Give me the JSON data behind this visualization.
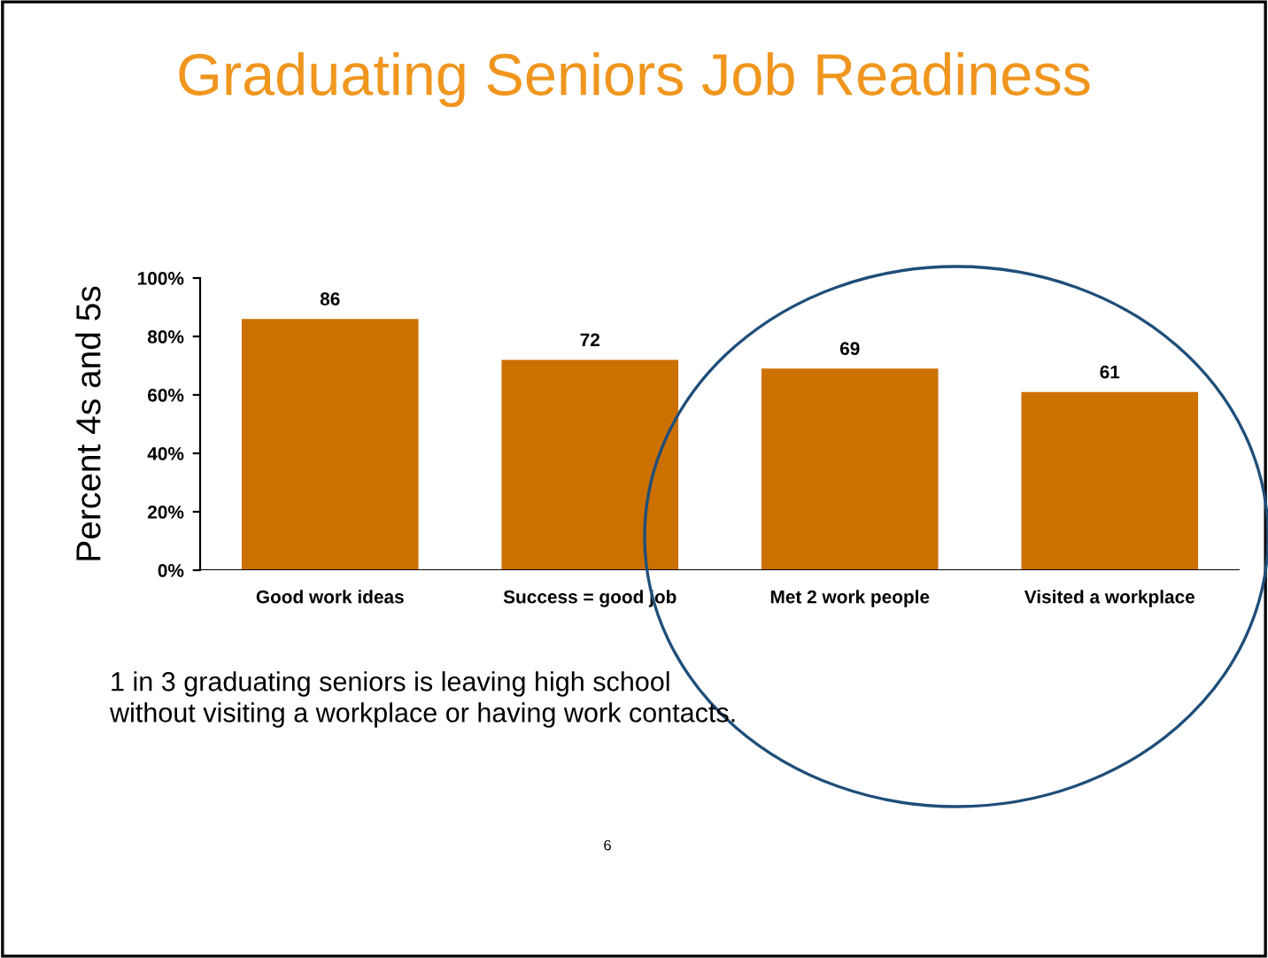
{
  "chart_data": {
    "type": "bar",
    "title": "Graduating Seniors Job Readiness",
    "ylabel": "Percent 4s and 5s",
    "categories": [
      "Good work ideas",
      "Success = good job",
      "Met 2 work people",
      "Visited a workplace"
    ],
    "values": [
      86,
      72,
      69,
      61
    ],
    "color": "#cc7000",
    "data_labels": true,
    "ylim": [
      0,
      100
    ],
    "yticks": [
      {
        "value": 0,
        "label": "0%"
      },
      {
        "value": 20,
        "label": "20%"
      },
      {
        "value": 40,
        "label": "40%"
      },
      {
        "value": 60,
        "label": "60%"
      },
      {
        "value": 80,
        "label": "80%"
      },
      {
        "value": 100,
        "label": "100%"
      }
    ],
    "grid": false,
    "annotations": [
      "1 in 3 graduating seniors is leaving high school\nwithout visiting a workplace or having work contacts.",
      "6"
    ]
  }
}
